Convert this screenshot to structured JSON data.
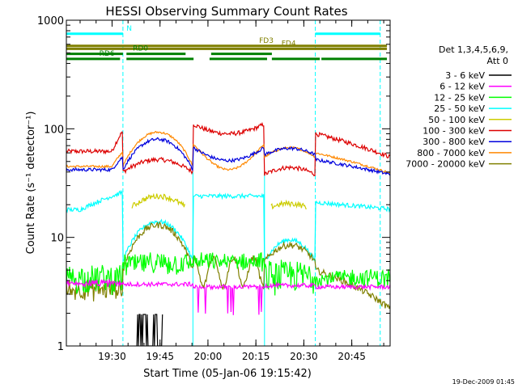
{
  "chart_data": {
    "type": "line",
    "title": "HESSI Observing Summary Count Rates",
    "xlabel": "Start Time (05-Jan-06 19:15:42)",
    "ylabel": "Count Rate (s⁻¹ detector⁻¹)",
    "x_start_minutes": 1155.7,
    "xlim_minutes": [
      1155.7,
      1257.0
    ],
    "ylim": [
      1,
      1000
    ],
    "yscale": "log",
    "xticks": [
      {
        "label": "19:30",
        "min": 1170
      },
      {
        "label": "19:45",
        "min": 1185
      },
      {
        "label": "20:00",
        "min": 1200
      },
      {
        "label": "20:15",
        "min": 1215
      },
      {
        "label": "20:30",
        "min": 1230
      },
      {
        "label": "20:45",
        "min": 1245
      }
    ],
    "yticks": [
      {
        "label": "1",
        "v": 1
      },
      {
        "label": "10",
        "v": 10
      },
      {
        "label": "100",
        "v": 100
      },
      {
        "label": "1000",
        "v": 1000
      }
    ],
    "legend": {
      "placement": "right",
      "header_1": "Det 1,3,4,5,6,9,",
      "header_2": "Att 0"
    },
    "series": [
      {
        "name": "3 - 6 keV",
        "color": "#000000"
      },
      {
        "name": "6 - 12 keV",
        "color": "#ff00ff"
      },
      {
        "name": "12 - 25 keV",
        "color": "#00ff00"
      },
      {
        "name": "25 - 50 keV",
        "color": "#00ffff"
      },
      {
        "name": "50 - 100 keV",
        "color": "#cccc00"
      },
      {
        "name": "100 - 300 keV",
        "color": "#dd0000"
      },
      {
        "name": "300 - 800 keV",
        "color": "#0000dd"
      },
      {
        "name": "800 - 7000 keV",
        "color": "#ff8800"
      },
      {
        "name": "7000 - 20000 keV",
        "color": "#808000"
      }
    ],
    "night_boundaries_minutes": [
      1173.4,
      1233.6,
      1253.9
    ],
    "flags": [
      {
        "label": "N",
        "color": "#00ffff",
        "level": 750,
        "segments": [
          [
            1155.7,
            1173.4
          ],
          [
            1233.6,
            1253.9
          ]
        ],
        "label_at": 1174.5
      },
      {
        "label": "FD3",
        "color": "#808000",
        "level": 580,
        "segments": [
          [
            1155.7,
            1256.0
          ]
        ],
        "label_at": 1216.0
      },
      {
        "label": "FD4",
        "color": "#808000",
        "level": 545,
        "segments": [
          [
            1155.7,
            1256.0
          ]
        ],
        "label_at": 1223.0
      },
      {
        "label": "RD0",
        "color": "#008000",
        "level": 490,
        "segments": [
          [
            1155.7,
            1173.4
          ],
          [
            1174.5,
            1193.0
          ],
          [
            1201.0,
            1220.0
          ]
        ],
        "label_at": 1176.5
      },
      {
        "label": "RD6",
        "color": "#008000",
        "level": 440,
        "segments": [
          [
            1155.7,
            1172.5
          ],
          [
            1174.5,
            1195.5
          ],
          [
            1200.5,
            1218.5
          ],
          [
            1220.0,
            1235.0
          ],
          [
            1235.5,
            1256.0
          ]
        ],
        "label_at": 1166.0
      }
    ],
    "orbit_day_segments_minutes": [
      [
        1173.4,
        1195.3
      ],
      [
        1195.3,
        1217.7
      ],
      [
        1217.7,
        1233.6
      ]
    ]
  },
  "footer": {
    "timestamp": "19-Dec-2009 01:45"
  }
}
